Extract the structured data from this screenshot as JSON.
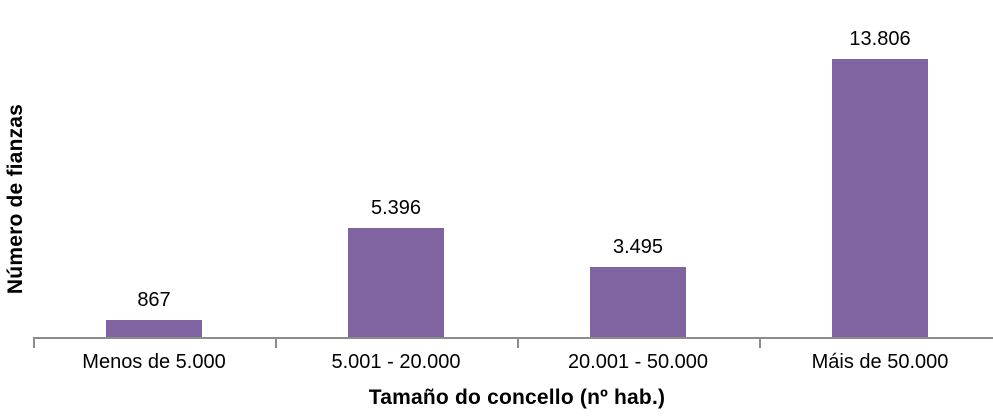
{
  "chart_data": {
    "type": "bar",
    "title": "",
    "categories": [
      "Menos de 5.000",
      "5.001 - 20.000",
      "20.001 - 50.000",
      "Máis de 50.000"
    ],
    "values": [
      867,
      5396,
      3495,
      13806
    ],
    "value_labels": [
      "867",
      "5.396",
      "3.495",
      "13.806"
    ],
    "xlabel": "Tamaño do concello (nº hab.)",
    "ylabel": "Número de fianzas",
    "ylim": [
      0,
      16000
    ],
    "grid": false,
    "legend_position": "none",
    "bar_color": "#8064A2",
    "axis_color": "#8C8C8C",
    "text_color": "#000000",
    "background_color": "#FFFFFF"
  }
}
